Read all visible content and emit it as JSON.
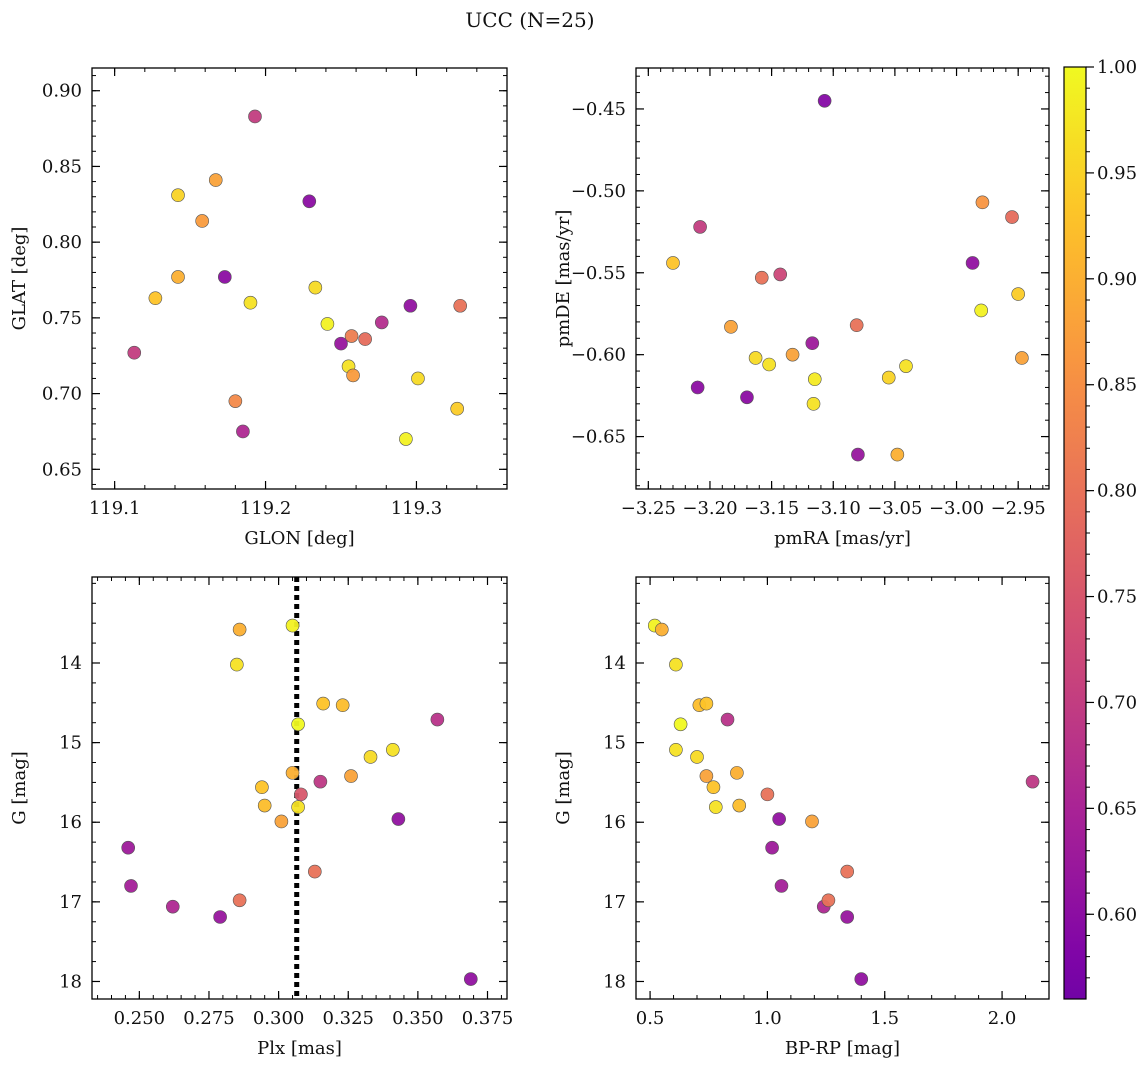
{
  "figure": {
    "title": "UCC (N=25)"
  },
  "colorbar": {
    "range": [
      0.56,
      1.0
    ],
    "ticks": [
      0.6,
      0.65,
      0.7,
      0.75,
      0.8,
      0.85,
      0.9,
      0.95,
      1.0
    ],
    "tick_labels": [
      "0.60",
      "0.65",
      "0.70",
      "0.75",
      "0.80",
      "0.85",
      "0.90",
      "0.95",
      "1.00"
    ],
    "colormap": "plasma"
  },
  "chart_data": [
    {
      "type": "scatter",
      "title": "",
      "xlabel": "GLON [deg]",
      "ylabel": "GLAT [deg]",
      "xlim": [
        119.085,
        119.36
      ],
      "ylim": [
        0.637,
        0.915
      ],
      "y_inverted": false,
      "xticks": [
        119.1,
        119.2,
        119.3
      ],
      "xtick_labels": [
        "119.1",
        "119.2",
        "119.3"
      ],
      "xminor": 0.02,
      "yticks": [
        0.65,
        0.7,
        0.75,
        0.8,
        0.85,
        0.9
      ],
      "ytick_labels": [
        "0.65",
        "0.70",
        "0.75",
        "0.80",
        "0.85",
        "0.90"
      ],
      "yminor": 0.01,
      "points": [
        {
          "x": 119.113,
          "y": 0.727,
          "c": 0.7
        },
        {
          "x": 119.127,
          "y": 0.763,
          "c": 0.93
        },
        {
          "x": 119.142,
          "y": 0.831,
          "c": 0.95
        },
        {
          "x": 119.142,
          "y": 0.777,
          "c": 0.9
        },
        {
          "x": 119.158,
          "y": 0.814,
          "c": 0.87
        },
        {
          "x": 119.167,
          "y": 0.841,
          "c": 0.88
        },
        {
          "x": 119.173,
          "y": 0.777,
          "c": 0.6
        },
        {
          "x": 119.18,
          "y": 0.695,
          "c": 0.84
        },
        {
          "x": 119.185,
          "y": 0.675,
          "c": 0.66
        },
        {
          "x": 119.19,
          "y": 0.76,
          "c": 0.97
        },
        {
          "x": 119.193,
          "y": 0.883,
          "c": 0.7
        },
        {
          "x": 119.229,
          "y": 0.827,
          "c": 0.6
        },
        {
          "x": 119.233,
          "y": 0.77,
          "c": 0.96
        },
        {
          "x": 119.241,
          "y": 0.746,
          "c": 0.99
        },
        {
          "x": 119.25,
          "y": 0.733,
          "c": 0.62
        },
        {
          "x": 119.255,
          "y": 0.718,
          "c": 0.97
        },
        {
          "x": 119.257,
          "y": 0.738,
          "c": 0.82
        },
        {
          "x": 119.258,
          "y": 0.712,
          "c": 0.87
        },
        {
          "x": 119.266,
          "y": 0.736,
          "c": 0.79
        },
        {
          "x": 119.277,
          "y": 0.747,
          "c": 0.67
        },
        {
          "x": 119.293,
          "y": 0.67,
          "c": 0.99
        },
        {
          "x": 119.296,
          "y": 0.758,
          "c": 0.61
        },
        {
          "x": 119.301,
          "y": 0.71,
          "c": 0.96
        },
        {
          "x": 119.327,
          "y": 0.69,
          "c": 0.94
        },
        {
          "x": 119.329,
          "y": 0.758,
          "c": 0.8
        }
      ]
    },
    {
      "type": "scatter",
      "title": "",
      "xlabel": "pmRA [mas/yr]",
      "ylabel": "pmDE [mas/yr]",
      "xlim": [
        -3.26,
        -2.925
      ],
      "ylim": [
        -0.682,
        -0.425
      ],
      "y_inverted": false,
      "xticks": [
        -3.25,
        -3.2,
        -3.15,
        -3.1,
        -3.05,
        -3.0,
        -2.95
      ],
      "xtick_labels": [
        "−3.25",
        "−3.20",
        "−3.15",
        "−3.10",
        "−3.05",
        "−3.00",
        "−2.95"
      ],
      "xminor": 0.01,
      "yticks": [
        -0.65,
        -0.6,
        -0.55,
        -0.5,
        -0.45
      ],
      "ytick_labels": [
        "−0.65",
        "−0.60",
        "−0.55",
        "−0.50",
        "−0.45"
      ],
      "yminor": 0.01,
      "points": [
        {
          "x": -3.23,
          "y": -0.544,
          "c": 0.93
        },
        {
          "x": -3.21,
          "y": -0.62,
          "c": 0.6
        },
        {
          "x": -3.208,
          "y": -0.522,
          "c": 0.7
        },
        {
          "x": -3.183,
          "y": -0.583,
          "c": 0.88
        },
        {
          "x": -3.17,
          "y": -0.626,
          "c": 0.6
        },
        {
          "x": -3.163,
          "y": -0.602,
          "c": 0.96
        },
        {
          "x": -3.158,
          "y": -0.553,
          "c": 0.8
        },
        {
          "x": -3.152,
          "y": -0.606,
          "c": 0.97
        },
        {
          "x": -3.143,
          "y": -0.551,
          "c": 0.72
        },
        {
          "x": -3.133,
          "y": -0.6,
          "c": 0.88
        },
        {
          "x": -3.117,
          "y": -0.593,
          "c": 0.63
        },
        {
          "x": -3.116,
          "y": -0.63,
          "c": 0.97
        },
        {
          "x": -3.115,
          "y": -0.615,
          "c": 0.98
        },
        {
          "x": -3.107,
          "y": -0.445,
          "c": 0.59
        },
        {
          "x": -3.081,
          "y": -0.582,
          "c": 0.8
        },
        {
          "x": -3.08,
          "y": -0.661,
          "c": 0.62
        },
        {
          "x": -3.055,
          "y": -0.614,
          "c": 0.95
        },
        {
          "x": -3.048,
          "y": -0.661,
          "c": 0.9
        },
        {
          "x": -3.041,
          "y": -0.607,
          "c": 0.97
        },
        {
          "x": -2.987,
          "y": -0.544,
          "c": 0.61
        },
        {
          "x": -2.98,
          "y": -0.573,
          "c": 0.99
        },
        {
          "x": -2.979,
          "y": -0.507,
          "c": 0.86
        },
        {
          "x": -2.955,
          "y": -0.516,
          "c": 0.79
        },
        {
          "x": -2.95,
          "y": -0.563,
          "c": 0.94
        },
        {
          "x": -2.947,
          "y": -0.602,
          "c": 0.88
        }
      ]
    },
    {
      "type": "scatter",
      "title": "",
      "xlabel": "Plx [mas]",
      "ylabel": "G [mag]",
      "xlim": [
        0.233,
        0.382
      ],
      "ylim": [
        18.22,
        12.92
      ],
      "y_inverted": true,
      "xticks": [
        0.25,
        0.275,
        0.3,
        0.325,
        0.35,
        0.375
      ],
      "xtick_labels": [
        "0.250",
        "0.275",
        "0.300",
        "0.325",
        "0.350",
        "0.375"
      ],
      "xminor": 0.005,
      "yticks": [
        14,
        15,
        16,
        17,
        18
      ],
      "ytick_labels": [
        "14",
        "15",
        "16",
        "17",
        "18"
      ],
      "yminor": 0.25,
      "vline": {
        "x": 0.3065,
        "style": "dotted"
      },
      "points": [
        {
          "x": 0.246,
          "y": 16.32,
          "c": 0.63
        },
        {
          "x": 0.247,
          "y": 16.8,
          "c": 0.64
        },
        {
          "x": 0.262,
          "y": 17.06,
          "c": 0.66
        },
        {
          "x": 0.279,
          "y": 17.19,
          "c": 0.62
        },
        {
          "x": 0.285,
          "y": 14.02,
          "c": 0.97
        },
        {
          "x": 0.286,
          "y": 13.58,
          "c": 0.9
        },
        {
          "x": 0.286,
          "y": 16.98,
          "c": 0.8
        },
        {
          "x": 0.294,
          "y": 15.56,
          "c": 0.93
        },
        {
          "x": 0.295,
          "y": 15.79,
          "c": 0.92
        },
        {
          "x": 0.301,
          "y": 15.99,
          "c": 0.88
        },
        {
          "x": 0.305,
          "y": 13.53,
          "c": 0.99
        },
        {
          "x": 0.305,
          "y": 15.38,
          "c": 0.9
        },
        {
          "x": 0.307,
          "y": 14.77,
          "c": 1.0
        },
        {
          "x": 0.307,
          "y": 15.81,
          "c": 0.97
        },
        {
          "x": 0.308,
          "y": 15.65,
          "c": 0.75
        },
        {
          "x": 0.313,
          "y": 16.62,
          "c": 0.8
        },
        {
          "x": 0.315,
          "y": 15.49,
          "c": 0.69
        },
        {
          "x": 0.316,
          "y": 14.51,
          "c": 0.93
        },
        {
          "x": 0.323,
          "y": 14.53,
          "c": 0.92
        },
        {
          "x": 0.326,
          "y": 15.42,
          "c": 0.88
        },
        {
          "x": 0.333,
          "y": 15.18,
          "c": 0.96
        },
        {
          "x": 0.341,
          "y": 15.09,
          "c": 0.97
        },
        {
          "x": 0.343,
          "y": 15.96,
          "c": 0.61
        },
        {
          "x": 0.357,
          "y": 14.71,
          "c": 0.68
        },
        {
          "x": 0.369,
          "y": 17.97,
          "c": 0.61
        }
      ]
    },
    {
      "type": "scatter",
      "title": "",
      "xlabel": "BP-RP [mag]",
      "ylabel": "G [mag]",
      "xlim": [
        0.44,
        2.2
      ],
      "ylim": [
        18.22,
        12.92
      ],
      "y_inverted": true,
      "xticks": [
        0.5,
        1.0,
        1.5,
        2.0
      ],
      "xtick_labels": [
        "0.5",
        "1.0",
        "1.5",
        "2.0"
      ],
      "xminor": 0.1,
      "yticks": [
        14,
        15,
        16,
        17,
        18
      ],
      "ytick_labels": [
        "14",
        "15",
        "16",
        "17",
        "18"
      ],
      "yminor": 0.25,
      "points": [
        {
          "x": 0.52,
          "y": 13.53,
          "c": 0.99
        },
        {
          "x": 0.55,
          "y": 13.58,
          "c": 0.9
        },
        {
          "x": 0.61,
          "y": 14.02,
          "c": 0.97
        },
        {
          "x": 0.61,
          "y": 15.09,
          "c": 0.97
        },
        {
          "x": 0.63,
          "y": 14.77,
          "c": 1.0
        },
        {
          "x": 0.7,
          "y": 15.18,
          "c": 0.96
        },
        {
          "x": 0.71,
          "y": 14.53,
          "c": 0.92
        },
        {
          "x": 0.74,
          "y": 14.51,
          "c": 0.93
        },
        {
          "x": 0.74,
          "y": 15.42,
          "c": 0.88
        },
        {
          "x": 0.77,
          "y": 15.56,
          "c": 0.93
        },
        {
          "x": 0.78,
          "y": 15.81,
          "c": 0.97
        },
        {
          "x": 0.83,
          "y": 14.71,
          "c": 0.68
        },
        {
          "x": 0.87,
          "y": 15.38,
          "c": 0.9
        },
        {
          "x": 0.88,
          "y": 15.79,
          "c": 0.92
        },
        {
          "x": 1.0,
          "y": 15.65,
          "c": 0.8
        },
        {
          "x": 1.02,
          "y": 16.32,
          "c": 0.63
        },
        {
          "x": 1.05,
          "y": 15.96,
          "c": 0.61
        },
        {
          "x": 1.06,
          "y": 16.8,
          "c": 0.64
        },
        {
          "x": 1.19,
          "y": 15.99,
          "c": 0.88
        },
        {
          "x": 1.24,
          "y": 17.06,
          "c": 0.66
        },
        {
          "x": 1.26,
          "y": 16.98,
          "c": 0.8
        },
        {
          "x": 1.34,
          "y": 16.62,
          "c": 0.8
        },
        {
          "x": 1.34,
          "y": 17.19,
          "c": 0.62
        },
        {
          "x": 1.4,
          "y": 17.97,
          "c": 0.61
        },
        {
          "x": 2.13,
          "y": 15.49,
          "c": 0.69
        }
      ]
    }
  ]
}
